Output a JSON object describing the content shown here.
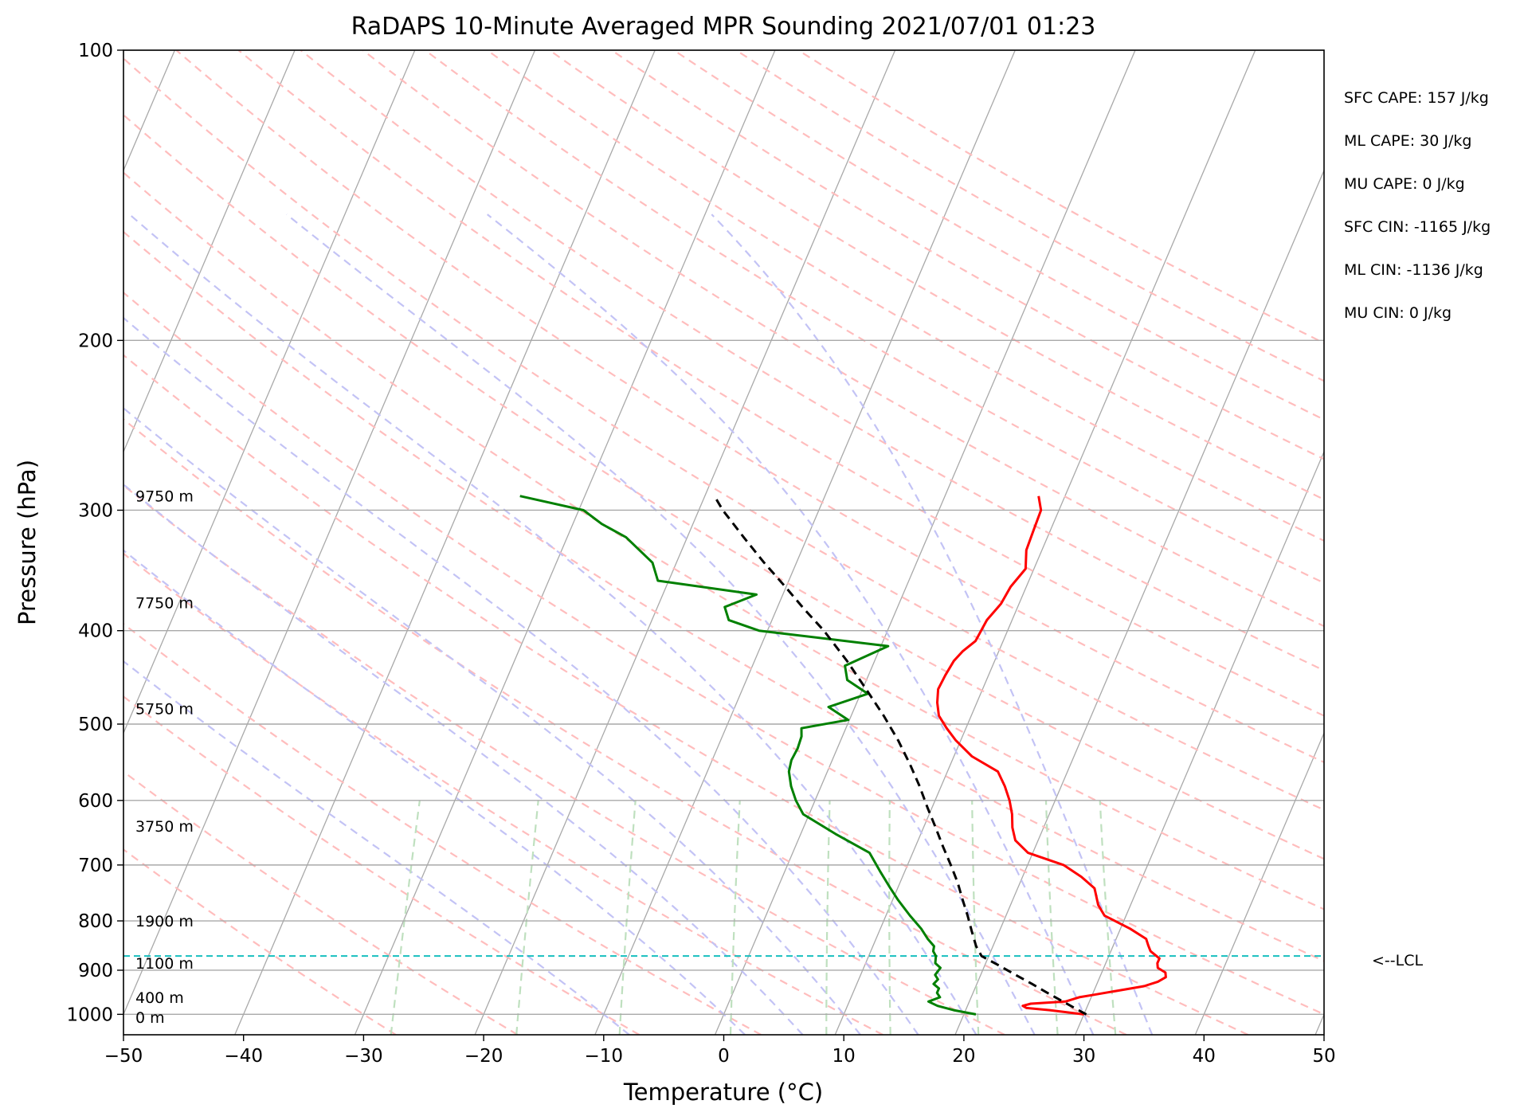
{
  "chart_data": {
    "type": "line",
    "title": "RaDAPS 10-Minute Averaged MPR Sounding 2021/07/01 01:23",
    "xlabel": "Temperature (°C)",
    "ylabel": "Pressure (hPa)",
    "xlim": [
      -50,
      50
    ],
    "ylim": [
      1050,
      100
    ],
    "y_scale": "log",
    "x_ticks": [
      -50,
      -40,
      -30,
      -20,
      -10,
      0,
      10,
      20,
      30,
      40,
      50
    ],
    "x_tick_labels": [
      "−50",
      "−40",
      "−30",
      "−20",
      "−10",
      "0",
      "10",
      "20",
      "30",
      "40",
      "50"
    ],
    "y_ticks": [
      100,
      200,
      300,
      400,
      500,
      600,
      700,
      800,
      900,
      1000
    ],
    "y_tick_labels": [
      "100",
      "200",
      "300",
      "400",
      "500",
      "600",
      "700",
      "800",
      "900",
      "1000"
    ],
    "grid": true,
    "skew": 35,
    "series": [
      {
        "color": "#ff0000",
        "p": [
          1000,
          990,
          985,
          980,
          975,
          970,
          960,
          955,
          945,
          935,
          925,
          915,
          905,
          895,
          885,
          875,
          860,
          848,
          835,
          815,
          790,
          770,
          740,
          720,
          700,
          680,
          660,
          640,
          620,
          600,
          580,
          560,
          540,
          520,
          505,
          490,
          475,
          460,
          445,
          430,
          420,
          410,
          390,
          375,
          360,
          345,
          330,
          315,
          300,
          290
        ],
        "t": [
          30,
          27,
          25,
          24.6,
          25.2,
          28,
          29,
          30,
          32,
          34,
          35,
          35.5,
          35.3,
          34.5,
          34.3,
          34.3,
          33.3,
          32.9,
          32.5,
          30.8,
          28.2,
          27.3,
          26.4,
          24.9,
          23,
          19.6,
          18.1,
          17.4,
          16.9,
          16.2,
          15.3,
          14.2,
          11.5,
          9.6,
          8.4,
          7.3,
          6.7,
          6.3,
          6.4,
          6.6,
          7,
          7.7,
          7.9,
          8.5,
          8.7,
          9.3,
          8.7,
          8.6,
          8.5,
          7.8
        ]
      },
      {
        "color": "#008000",
        "p": [
          1000,
          990,
          980,
          970,
          960,
          950,
          940,
          930,
          920,
          910,
          895,
          885,
          870,
          860,
          850,
          835,
          815,
          790,
          760,
          740,
          710,
          680,
          650,
          620,
          600,
          580,
          560,
          545,
          530,
          515,
          505,
          495,
          480,
          465,
          450,
          435,
          415,
          400,
          390,
          378,
          367,
          355,
          340,
          320,
          310,
          300,
          290
        ],
        "t": [
          21,
          19,
          17.5,
          16.6,
          17.4,
          17,
          17,
          16.4,
          16.6,
          16.2,
          16.4,
          15.8,
          15.6,
          15.2,
          15.1,
          14.3,
          13.4,
          12,
          10.4,
          9.4,
          7.9,
          6.4,
          2.9,
          -0.5,
          -1.6,
          -2.5,
          -3.2,
          -3.4,
          -3.3,
          -3.4,
          -3.7,
          -0.1,
          -2.2,
          0.6,
          -1.6,
          -2.3,
          0.6,
          -10.7,
          -13.6,
          -14.4,
          -12.2,
          -20.9,
          -22,
          -25.1,
          -27.6,
          -29.6,
          -35.4
        ]
      },
      {
        "color": "#000000",
        "p": [
          1000,
          990,
          970,
          950,
          930,
          910,
          890,
          870,
          850,
          820,
          790,
          760,
          730,
          700,
          670,
          640,
          610,
          580,
          550,
          520,
          490,
          460,
          430,
          400,
          380,
          360,
          340,
          320,
          300,
          290
        ],
        "t": [
          30.2,
          29.4,
          27.8,
          26.2,
          24.6,
          22.9,
          21.2,
          19.4,
          18.6,
          17.7,
          16.8,
          15.8,
          14.8,
          13.6,
          12.3,
          11,
          9.6,
          8.2,
          6.6,
          4.8,
          2.7,
          0.3,
          -2.3,
          -5.3,
          -7.7,
          -10.1,
          -12.7,
          -15.3,
          -18,
          -19.2
        ]
      }
    ],
    "lcl_pressure": 870,
    "lcl_label": "<--LCL",
    "height_labels": [
      {
        "p": 290,
        "text": "9750 m"
      },
      {
        "p": 374,
        "text": "7750 m"
      },
      {
        "p": 482,
        "text": "5750 m"
      },
      {
        "p": 638,
        "text": "3750 m"
      },
      {
        "p": 800,
        "text": "1900 m"
      },
      {
        "p": 885,
        "text": "1100 m"
      },
      {
        "p": 960,
        "text": "400 m"
      },
      {
        "p": 1007,
        "text": "0 m"
      }
    ],
    "dry_adiabats_theta_c": [
      -30,
      -20,
      -10,
      0,
      10,
      20,
      30,
      40,
      50,
      60,
      70,
      80,
      90,
      100,
      110,
      120,
      130,
      140,
      150,
      160,
      170,
      180,
      190,
      200
    ],
    "moist_adiabats_t0_c": [
      -10,
      0,
      5,
      10,
      15,
      20,
      25,
      30,
      35
    ],
    "mixing_ratio_lines_gkg": [
      0.4,
      1,
      2,
      4,
      7,
      10,
      16,
      24,
      32
    ],
    "annotations": [
      "SFC CAPE: 157 J/kg",
      "ML CAPE: 30 J/kg",
      "MU CAPE: 0 J/kg",
      "SFC CIN: -1165 J/kg",
      "ML CIN: -1136 J/kg",
      "MU CIN: 0 J/kg"
    ]
  }
}
